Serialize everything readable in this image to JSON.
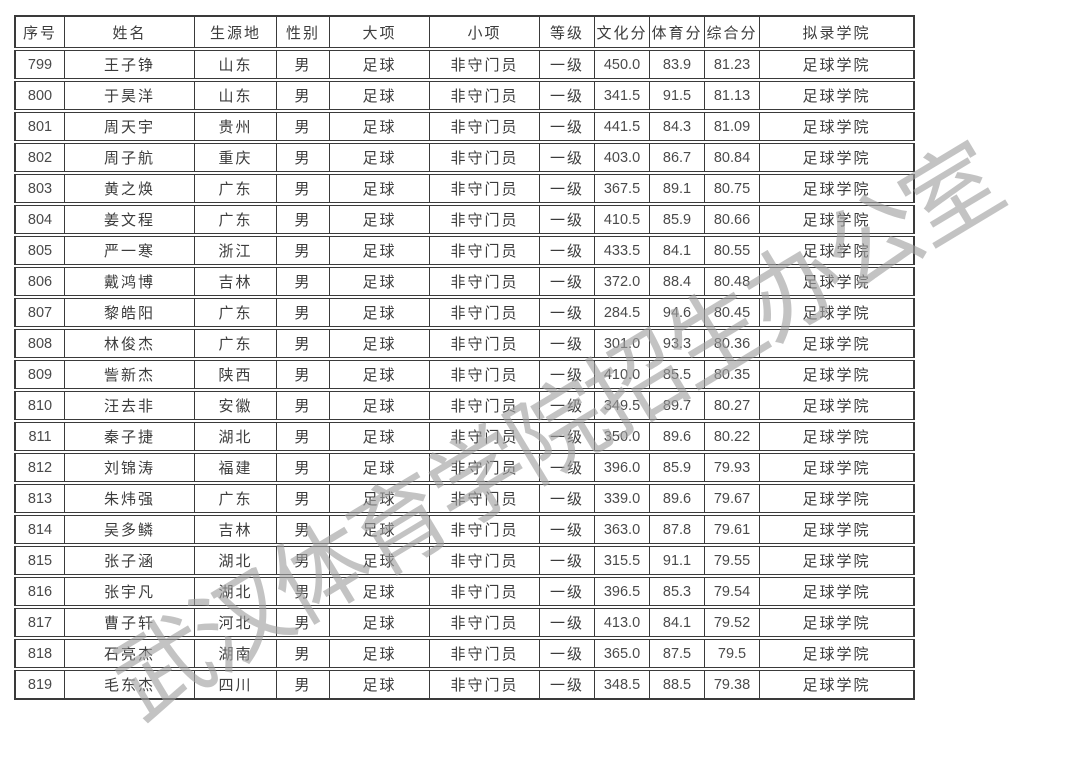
{
  "watermark": {
    "text": "武汉体育学院招生办公室",
    "color": "#a0a0a0"
  },
  "table": {
    "columns": [
      "序号",
      "姓名",
      "生源地",
      "性别",
      "大项",
      "小项",
      "等级",
      "文化分",
      "体育分",
      "综合分",
      "拟录学院"
    ],
    "rows": [
      [
        "799",
        "王子铮",
        "山东",
        "男",
        "足球",
        "非守门员",
        "一级",
        "450.0",
        "83.9",
        "81.23",
        "足球学院"
      ],
      [
        "800",
        "于昊洋",
        "山东",
        "男",
        "足球",
        "非守门员",
        "一级",
        "341.5",
        "91.5",
        "81.13",
        "足球学院"
      ],
      [
        "801",
        "周天宇",
        "贵州",
        "男",
        "足球",
        "非守门员",
        "一级",
        "441.5",
        "84.3",
        "81.09",
        "足球学院"
      ],
      [
        "802",
        "周子航",
        "重庆",
        "男",
        "足球",
        "非守门员",
        "一级",
        "403.0",
        "86.7",
        "80.84",
        "足球学院"
      ],
      [
        "803",
        "黄之焕",
        "广东",
        "男",
        "足球",
        "非守门员",
        "一级",
        "367.5",
        "89.1",
        "80.75",
        "足球学院"
      ],
      [
        "804",
        "姜文程",
        "广东",
        "男",
        "足球",
        "非守门员",
        "一级",
        "410.5",
        "85.9",
        "80.66",
        "足球学院"
      ],
      [
        "805",
        "严一寒",
        "浙江",
        "男",
        "足球",
        "非守门员",
        "一级",
        "433.5",
        "84.1",
        "80.55",
        "足球学院"
      ],
      [
        "806",
        "戴鸿博",
        "吉林",
        "男",
        "足球",
        "非守门员",
        "一级",
        "372.0",
        "88.4",
        "80.48",
        "足球学院"
      ],
      [
        "807",
        "黎皓阳",
        "广东",
        "男",
        "足球",
        "非守门员",
        "一级",
        "284.5",
        "94.6",
        "80.45",
        "足球学院"
      ],
      [
        "808",
        "林俊杰",
        "广东",
        "男",
        "足球",
        "非守门员",
        "一级",
        "301.0",
        "93.3",
        "80.36",
        "足球学院"
      ],
      [
        "809",
        "訾新杰",
        "陕西",
        "男",
        "足球",
        "非守门员",
        "一级",
        "410.0",
        "85.5",
        "80.35",
        "足球学院"
      ],
      [
        "810",
        "汪去非",
        "安徽",
        "男",
        "足球",
        "非守门员",
        "一级",
        "349.5",
        "89.7",
        "80.27",
        "足球学院"
      ],
      [
        "811",
        "秦子捷",
        "湖北",
        "男",
        "足球",
        "非守门员",
        "一级",
        "350.0",
        "89.6",
        "80.22",
        "足球学院"
      ],
      [
        "812",
        "刘锦涛",
        "福建",
        "男",
        "足球",
        "非守门员",
        "一级",
        "396.0",
        "85.9",
        "79.93",
        "足球学院"
      ],
      [
        "813",
        "朱炜强",
        "广东",
        "男",
        "足球",
        "非守门员",
        "一级",
        "339.0",
        "89.6",
        "79.67",
        "足球学院"
      ],
      [
        "814",
        "吴多鳞",
        "吉林",
        "男",
        "足球",
        "非守门员",
        "一级",
        "363.0",
        "87.8",
        "79.61",
        "足球学院"
      ],
      [
        "815",
        "张子涵",
        "湖北",
        "男",
        "足球",
        "非守门员",
        "一级",
        "315.5",
        "91.1",
        "79.55",
        "足球学院"
      ],
      [
        "816",
        "张宇凡",
        "湖北",
        "男",
        "足球",
        "非守门员",
        "一级",
        "396.5",
        "85.3",
        "79.54",
        "足球学院"
      ],
      [
        "817",
        "曹子轩",
        "河北",
        "男",
        "足球",
        "非守门员",
        "一级",
        "413.0",
        "84.1",
        "79.52",
        "足球学院"
      ],
      [
        "818",
        "石亮杰",
        "湖南",
        "男",
        "足球",
        "非守门员",
        "一级",
        "365.0",
        "87.5",
        "79.5",
        "足球学院"
      ],
      [
        "819",
        "毛东杰",
        "四川",
        "男",
        "足球",
        "非守门员",
        "一级",
        "348.5",
        "88.5",
        "79.38",
        "足球学院"
      ]
    ]
  }
}
